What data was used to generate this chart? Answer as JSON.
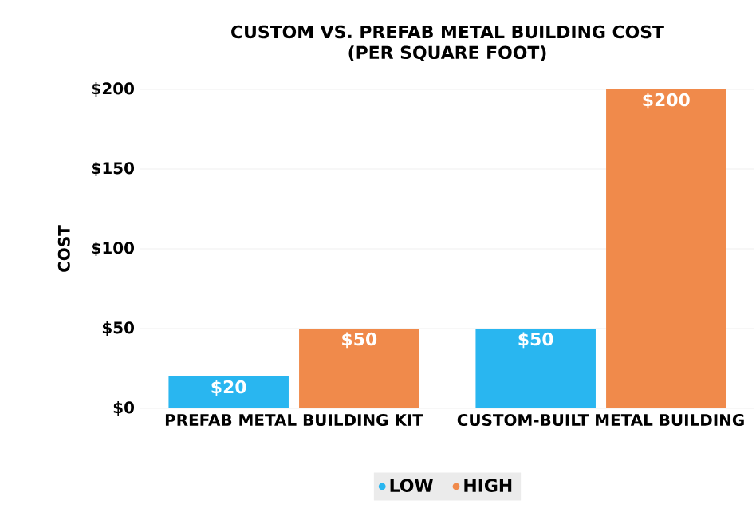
{
  "chart_data": {
    "type": "bar",
    "title": "CUSTOM VS. PREFAB METAL BUILDING COST\n(PER SQUARE FOOT)",
    "ylabel": "COST",
    "categories": [
      "PREFAB METAL BUILDING KIT",
      "CUSTOM-BUILT METAL BUILDING"
    ],
    "series": [
      {
        "name": "LOW",
        "color": "#29b6f0",
        "values": [
          20,
          50
        ],
        "value_labels": [
          "$20",
          "$50"
        ]
      },
      {
        "name": "HIGH",
        "color": "#f08a4b",
        "values": [
          50,
          200
        ],
        "value_labels": [
          "$50",
          "$200"
        ]
      }
    ],
    "ylim": [
      0,
      200
    ],
    "yticks": [
      {
        "value": 0,
        "label": "$0"
      },
      {
        "value": 50,
        "label": "$50"
      },
      {
        "value": 100,
        "label": "$100"
      },
      {
        "value": 150,
        "label": "$150"
      },
      {
        "value": 200,
        "label": "$200"
      }
    ],
    "grid": "y",
    "legend": "bottom"
  }
}
